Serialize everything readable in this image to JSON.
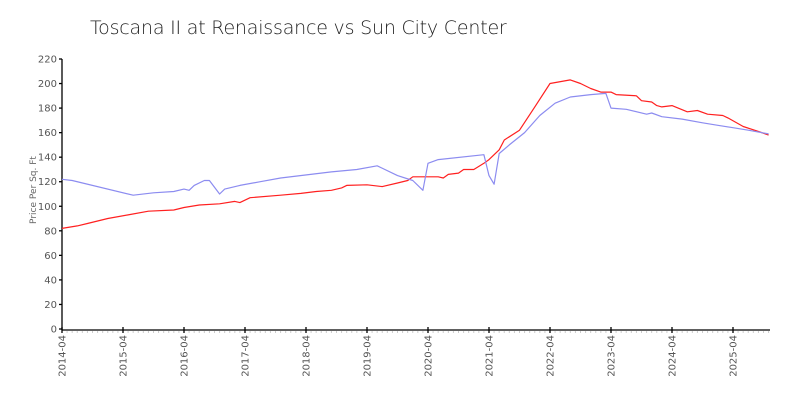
{
  "chart_data": {
    "type": "line",
    "title": "Toscana II at Renaissance vs Sun City Center",
    "xlabel": "",
    "ylabel": "Price Per Sq. Ft",
    "ylim": [
      0,
      220
    ],
    "yticks": [
      0,
      20,
      40,
      60,
      80,
      100,
      120,
      140,
      160,
      180,
      200,
      220
    ],
    "xticks": [
      "2014-04",
      "2015-04",
      "2016-04",
      "2017-04",
      "2018-04",
      "2019-04",
      "2020-04",
      "2021-04",
      "2022-04",
      "2023-04",
      "2024-04",
      "2025-04"
    ],
    "x_range_months": [
      0,
      139.4
    ],
    "grid": false,
    "legend": null,
    "series": [
      {
        "name": "Toscana II at Renaissance",
        "color": "#ff2020",
        "points": [
          [
            "2014-04",
            82
          ],
          [
            "2014-07",
            84
          ],
          [
            "2014-09",
            86
          ],
          [
            "2015-01",
            90
          ],
          [
            "2015-05",
            93
          ],
          [
            "2015-09",
            96
          ],
          [
            "2016-02",
            97
          ],
          [
            "2016-04",
            99
          ],
          [
            "2016-07",
            101
          ],
          [
            "2016-11",
            102
          ],
          [
            "2017-02",
            104
          ],
          [
            "2017-03",
            103
          ],
          [
            "2017-05",
            107
          ],
          [
            "2017-11",
            109
          ],
          [
            "2018-03",
            110.5
          ],
          [
            "2018-06",
            112
          ],
          [
            "2018-09",
            113
          ],
          [
            "2018-11",
            115
          ],
          [
            "2018-12",
            117
          ],
          [
            "2019-04",
            117.5
          ],
          [
            "2019-07",
            116
          ],
          [
            "2019-10",
            119
          ],
          [
            "2019-12",
            121
          ],
          [
            "2020-01",
            124
          ],
          [
            "2020-06",
            124
          ],
          [
            "2020-07",
            123
          ],
          [
            "2020-08",
            126
          ],
          [
            "2020-10",
            127
          ],
          [
            "2020-11",
            130
          ],
          [
            "2021-01",
            130
          ],
          [
            "2021-03",
            135
          ],
          [
            "2021-04",
            138
          ],
          [
            "2021-05",
            142
          ],
          [
            "2021-06",
            146
          ],
          [
            "2021-07",
            154
          ],
          [
            "2021-10",
            162
          ],
          [
            "2022-01",
            181
          ],
          [
            "2022-04",
            200
          ],
          [
            "2022-08",
            203
          ],
          [
            "2022-10",
            200
          ],
          [
            "2022-12",
            196
          ],
          [
            "2023-02",
            193
          ],
          [
            "2023-04",
            193
          ],
          [
            "2023-05",
            191
          ],
          [
            "2023-09",
            190
          ],
          [
            "2023-10",
            186
          ],
          [
            "2023-12",
            185
          ],
          [
            "2024-01",
            182
          ],
          [
            "2024-02",
            181
          ],
          [
            "2024-04",
            182
          ],
          [
            "2024-07",
            177
          ],
          [
            "2024-09",
            178
          ],
          [
            "2024-11",
            175
          ],
          [
            "2025-02",
            174
          ],
          [
            "2025-03",
            172
          ],
          [
            "2025-06",
            165
          ],
          [
            "2025-09",
            161
          ],
          [
            "2025-11",
            158
          ]
        ]
      },
      {
        "name": "Sun City Center",
        "color": "#8c8cf0",
        "points": [
          [
            "2014-04",
            122
          ],
          [
            "2014-06",
            121
          ],
          [
            "2015-06",
            109
          ],
          [
            "2015-10",
            111
          ],
          [
            "2016-02",
            112
          ],
          [
            "2016-04",
            114
          ],
          [
            "2016-05",
            113
          ],
          [
            "2016-06",
            117
          ],
          [
            "2016-08",
            121
          ],
          [
            "2016-09",
            121
          ],
          [
            "2016-11",
            110
          ],
          [
            "2016-12",
            114
          ],
          [
            "2017-03",
            117
          ],
          [
            "2017-07",
            120
          ],
          [
            "2017-11",
            123
          ],
          [
            "2018-09",
            128
          ],
          [
            "2019-02",
            130
          ],
          [
            "2019-06",
            133
          ],
          [
            "2019-10",
            125
          ],
          [
            "2020-01",
            121
          ],
          [
            "2020-03",
            113
          ],
          [
            "2020-04",
            135
          ],
          [
            "2020-06",
            138
          ],
          [
            "2021-03",
            142
          ],
          [
            "2021-04",
            125
          ],
          [
            "2021-05",
            118
          ],
          [
            "2021-06",
            143
          ],
          [
            "2021-08",
            150
          ],
          [
            "2021-11",
            160
          ],
          [
            "2022-02",
            174
          ],
          [
            "2022-05",
            184
          ],
          [
            "2022-08",
            189
          ],
          [
            "2022-12",
            191
          ],
          [
            "2023-03",
            192
          ],
          [
            "2023-04",
            180
          ],
          [
            "2023-07",
            179
          ],
          [
            "2023-11",
            175
          ],
          [
            "2023-12",
            176
          ],
          [
            "2024-02",
            173
          ],
          [
            "2024-06",
            171
          ],
          [
            "2024-10",
            168
          ],
          [
            "2025-01",
            166
          ],
          [
            "2025-04",
            164
          ],
          [
            "2025-07",
            162
          ],
          [
            "2025-11",
            159
          ]
        ]
      }
    ]
  }
}
